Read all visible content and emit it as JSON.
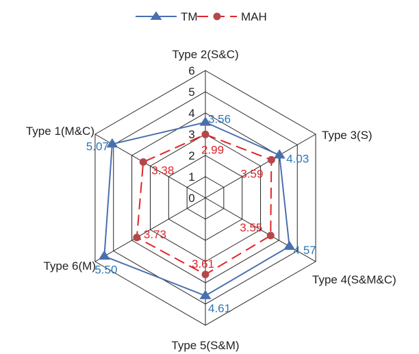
{
  "chart_data": {
    "type": "radar",
    "categories": [
      "Type 2(S&C)",
      "Type 3(S)",
      "Type 4(S&M&C)",
      "Type 5(S&M)",
      "Type 6(M)",
      "Type 1(M&C)"
    ],
    "rlim": [
      0,
      6
    ],
    "ticks": [
      "0",
      "1",
      "2",
      "3",
      "4",
      "5",
      "6"
    ],
    "grid": true,
    "legend": "top-center",
    "series": [
      {
        "name": "TM",
        "values": [
          3.56,
          4.03,
          4.57,
          4.61,
          5.5,
          5.07
        ],
        "labels": [
          "3.56",
          "4.03",
          "4.57",
          "4.61",
          "5.50",
          "5.07"
        ],
        "color": "#4a6fae",
        "label_color": "#2e75b6",
        "marker": "triangle",
        "line": "solid"
      },
      {
        "name": "MAH",
        "values": [
          2.99,
          3.59,
          3.55,
          3.61,
          3.73,
          3.38
        ],
        "labels": [
          "2.99",
          "3.59",
          "3.55",
          "3.61",
          "3.73",
          "3.38"
        ],
        "color": "#e0242a",
        "label_color": "#e0242a",
        "marker": "circle",
        "marker_color": "#b5474b",
        "line": "dashed"
      }
    ]
  }
}
